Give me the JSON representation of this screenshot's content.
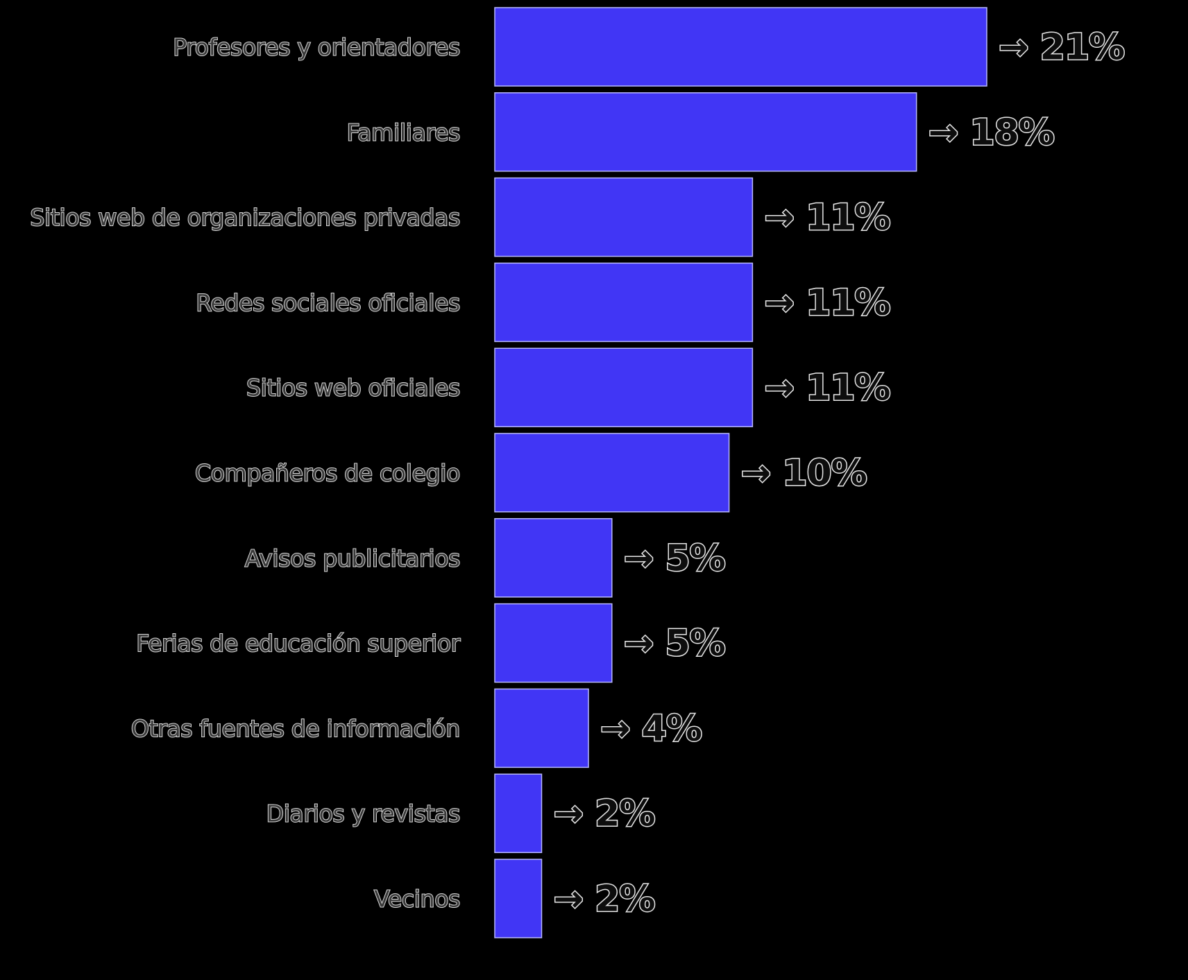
{
  "chart_data": {
    "type": "bar",
    "orientation": "horizontal",
    "categories": [
      "Profesores y orientadores",
      "Familiares",
      "Sitios web de organizaciones privadas",
      "Redes sociales oficiales",
      "Sitios web oficiales",
      "Compañeros de colegio",
      "Avisos publicitarios",
      "Ferias de educación superior",
      "Otras fuentes de información",
      "Diarios y revistas",
      "Vecinos"
    ],
    "values": [
      21,
      18,
      11,
      11,
      11,
      10,
      5,
      5,
      4,
      2,
      2
    ],
    "value_labels": [
      "21%",
      "18%",
      "11%",
      "11%",
      "11%",
      "10%",
      "5%",
      "5%",
      "4%",
      "2%",
      "2%"
    ],
    "value_prefix": "→",
    "xlim": [
      0,
      21
    ],
    "grid": false,
    "legend": "none",
    "title": "",
    "xlabel": "",
    "ylabel": ""
  },
  "colors": {
    "bar": "#4136f5",
    "background": "#000000"
  }
}
